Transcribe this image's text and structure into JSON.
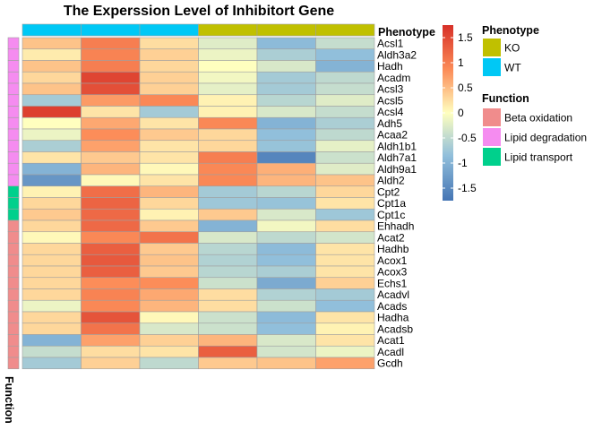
{
  "chart_data": {
    "type": "heatmap",
    "title": "The Experssion Level of Inhibitort Gene",
    "columns": [
      "WT",
      "WT",
      "WT",
      "KO",
      "KO",
      "KO"
    ],
    "rows": [
      {
        "gene": "Acsl1",
        "function": "Lipid degradation",
        "values": [
          0.45,
          1.0,
          0.25,
          -0.25,
          -0.9,
          -0.45
        ]
      },
      {
        "gene": "Aldh3a2",
        "function": "Lipid degradation",
        "values": [
          0.15,
          0.95,
          0.35,
          -0.15,
          -0.65,
          -0.85
        ]
      },
      {
        "gene": "Hadh",
        "function": "Lipid degradation",
        "values": [
          0.45,
          1.0,
          0.3,
          0.0,
          -0.3,
          -1.0
        ]
      },
      {
        "gene": "Acadm",
        "function": "Lipid degradation",
        "values": [
          0.3,
          1.55,
          0.35,
          -0.1,
          -0.7,
          -0.5
        ]
      },
      {
        "gene": "Acsl3",
        "function": "Lipid degradation",
        "values": [
          0.45,
          1.45,
          0.35,
          -0.2,
          -0.7,
          -0.45
        ]
      },
      {
        "gene": "Acsl5",
        "function": "Lipid degradation",
        "values": [
          -0.7,
          0.75,
          0.9,
          0.1,
          -0.55,
          -0.25
        ]
      },
      {
        "gene": "Acsl4",
        "function": "Lipid degradation",
        "values": [
          1.6,
          0.2,
          -0.7,
          0.1,
          -0.3,
          -0.45
        ]
      },
      {
        "gene": "Adh5",
        "function": "Lipid degradation",
        "values": [
          0.0,
          0.65,
          0.2,
          0.9,
          -1.0,
          -0.65
        ]
      },
      {
        "gene": "Acaa2",
        "function": "Lipid degradation",
        "values": [
          -0.15,
          0.85,
          0.4,
          0.3,
          -0.85,
          -0.5
        ]
      },
      {
        "gene": "Aldh1b1",
        "function": "Lipid degradation",
        "values": [
          -0.65,
          0.7,
          0.2,
          0.3,
          -0.8,
          -0.2
        ]
      },
      {
        "gene": "Aldh7a1",
        "function": "Lipid degradation",
        "values": [
          0.2,
          0.4,
          0.2,
          1.0,
          -1.55,
          -0.4
        ]
      },
      {
        "gene": "Aldh9a1",
        "function": "Lipid degradation",
        "values": [
          -1.0,
          0.55,
          0.05,
          0.9,
          0.6,
          -0.25
        ]
      },
      {
        "gene": "Aldh2",
        "function": "Lipid degradation",
        "values": [
          -1.35,
          0.05,
          0.2,
          0.9,
          0.55,
          0.45
        ]
      },
      {
        "gene": "Cpt2",
        "function": "Lipid transport",
        "values": [
          0.1,
          1.15,
          0.55,
          -0.7,
          -0.55,
          0.3
        ]
      },
      {
        "gene": "Cpt1a",
        "function": "Lipid transport",
        "values": [
          0.3,
          1.25,
          0.3,
          -0.75,
          -0.8,
          0.2
        ]
      },
      {
        "gene": "Cpt1c",
        "function": "Lipid transport",
        "values": [
          0.4,
          1.2,
          0.1,
          0.4,
          -0.3,
          -0.75
        ]
      },
      {
        "gene": "Ehhadh",
        "function": "Beta oxidation",
        "values": [
          0.3,
          1.2,
          0.4,
          -1.0,
          -0.1,
          0.25
        ]
      },
      {
        "gene": "Acat2",
        "function": "Beta oxidation",
        "values": [
          0.05,
          0.9,
          1.1,
          -0.3,
          -0.5,
          -0.35
        ]
      },
      {
        "gene": "Hadhb",
        "function": "Beta oxidation",
        "values": [
          0.3,
          1.3,
          0.4,
          -0.55,
          -0.9,
          0.2
        ]
      },
      {
        "gene": "Acox1",
        "function": "Beta oxidation",
        "values": [
          0.3,
          1.35,
          0.45,
          -0.6,
          -0.85,
          0.2
        ]
      },
      {
        "gene": "Acox3",
        "function": "Beta oxidation",
        "values": [
          0.3,
          1.3,
          0.4,
          -0.55,
          -0.65,
          0.2
        ]
      },
      {
        "gene": "Echs1",
        "function": "Beta oxidation",
        "values": [
          0.3,
          0.85,
          0.85,
          -0.4,
          -1.1,
          0.35
        ]
      },
      {
        "gene": "Acadvl",
        "function": "Beta oxidation",
        "values": [
          0.3,
          0.95,
          0.65,
          0.25,
          -0.6,
          -0.7
        ]
      },
      {
        "gene": "Acads",
        "function": "Beta oxidation",
        "values": [
          -0.15,
          0.9,
          0.55,
          0.25,
          -0.4,
          -0.85
        ]
      },
      {
        "gene": "Hadha",
        "function": "Beta oxidation",
        "values": [
          0.3,
          1.4,
          0.05,
          -0.4,
          -0.9,
          0.2
        ]
      },
      {
        "gene": "Acadsb",
        "function": "Beta oxidation",
        "values": [
          0.3,
          1.1,
          -0.3,
          -0.4,
          -0.85,
          0.1
        ]
      },
      {
        "gene": "Acat1",
        "function": "Beta oxidation",
        "values": [
          -1.0,
          0.7,
          0.35,
          0.55,
          -0.3,
          0.2
        ]
      },
      {
        "gene": "Acadl",
        "function": "Beta oxidation",
        "values": [
          -0.45,
          0.25,
          0.2,
          1.3,
          -0.35,
          -0.15
        ]
      },
      {
        "gene": "Gcdh",
        "function": "Beta oxidation",
        "values": [
          -0.7,
          0.35,
          -0.5,
          0.4,
          0.45,
          0.7
        ]
      }
    ],
    "color_scale": {
      "stops": [
        {
          "value": -1.75,
          "color": "#4575b4"
        },
        {
          "value": -0.85,
          "color": "#91bfdb"
        },
        {
          "value": 0.0,
          "color": "#ffffbf"
        },
        {
          "value": 0.85,
          "color": "#fc8d59"
        },
        {
          "value": 1.75,
          "color": "#d73027"
        }
      ],
      "ticks": [
        1.5,
        1,
        0.5,
        0,
        -0.5,
        -1,
        -1.5
      ],
      "tick_labels": [
        "1.5",
        "1",
        "0.5",
        "0",
        "-0.5",
        "-1",
        "-1.5"
      ]
    },
    "column_annotation": {
      "title": "Phenotype",
      "legend_title": "Phenotype",
      "levels": [
        {
          "name": "KO",
          "color": "#c0c000"
        },
        {
          "name": "WT",
          "color": "#00c8f5"
        }
      ]
    },
    "row_annotation": {
      "title": "Function",
      "legend_title": "Function",
      "levels": [
        {
          "name": "Beta oxidation",
          "color": "#f08c8c"
        },
        {
          "name": "Lipid degradation",
          "color": "#f58cf0"
        },
        {
          "name": "Lipid transport",
          "color": "#00d08c"
        }
      ]
    },
    "grid": true
  }
}
